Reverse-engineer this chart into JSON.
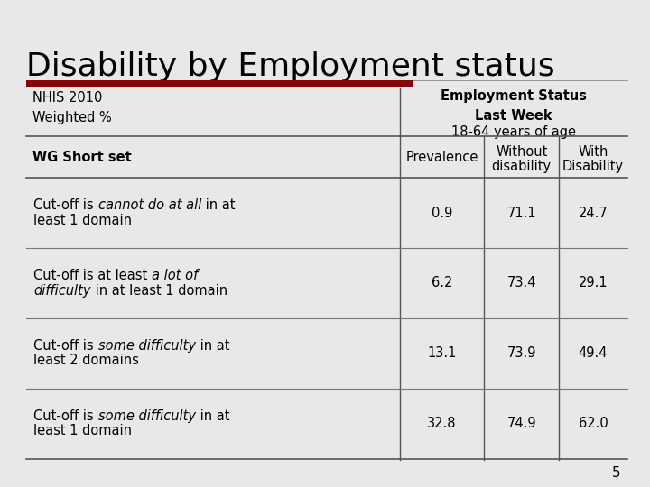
{
  "title": "Disability by Employment status",
  "subtitle_left1": "NHIS 2010",
  "subtitle_left2": "Weighted %",
  "subtitle_right1": "Employment Status",
  "subtitle_right2": "Last Week",
  "subtitle_right3": "18-64 years of age",
  "col_headers": [
    "WG Short set",
    "Prevalence",
    "Without\ndisability",
    "With\nDisability"
  ],
  "page_number": "5",
  "bg_color": "#e8e8e8",
  "red_bar_color": "#8b0000",
  "title_color": "#000000",
  "title_fontsize": 26,
  "subtitle_fontsize": 10.5,
  "header_fontsize": 10.5,
  "cell_fontsize": 10.5,
  "mono_family": "Courier New",
  "row_data": [
    {
      "lines": [
        [
          [
            "Cut-off is ",
            false
          ],
          [
            "cannot do at all",
            true
          ],
          [
            " in at",
            false
          ]
        ],
        [
          [
            "least 1 domain",
            false
          ]
        ]
      ],
      "vals": [
        "0.9",
        "71.1",
        "24.7"
      ]
    },
    {
      "lines": [
        [
          [
            "Cut-off is at least ",
            false
          ],
          [
            "a lot of",
            true
          ]
        ],
        [
          [
            "difficulty",
            true
          ],
          [
            " in at least 1 domain",
            false
          ]
        ]
      ],
      "vals": [
        "6.2",
        "73.4",
        "29.1"
      ]
    },
    {
      "lines": [
        [
          [
            "Cut-off is ",
            false
          ],
          [
            "some difficulty",
            true
          ],
          [
            " in at",
            false
          ]
        ],
        [
          [
            "least 2 domains",
            false
          ]
        ]
      ],
      "vals": [
        "13.1",
        "73.9",
        "49.4"
      ]
    },
    {
      "lines": [
        [
          [
            "Cut-off is ",
            false
          ],
          [
            "some difficulty",
            true
          ],
          [
            " in at",
            false
          ]
        ],
        [
          [
            "least 1 domain",
            false
          ]
        ]
      ],
      "vals": [
        "32.8",
        "74.9",
        "62.0"
      ]
    }
  ]
}
